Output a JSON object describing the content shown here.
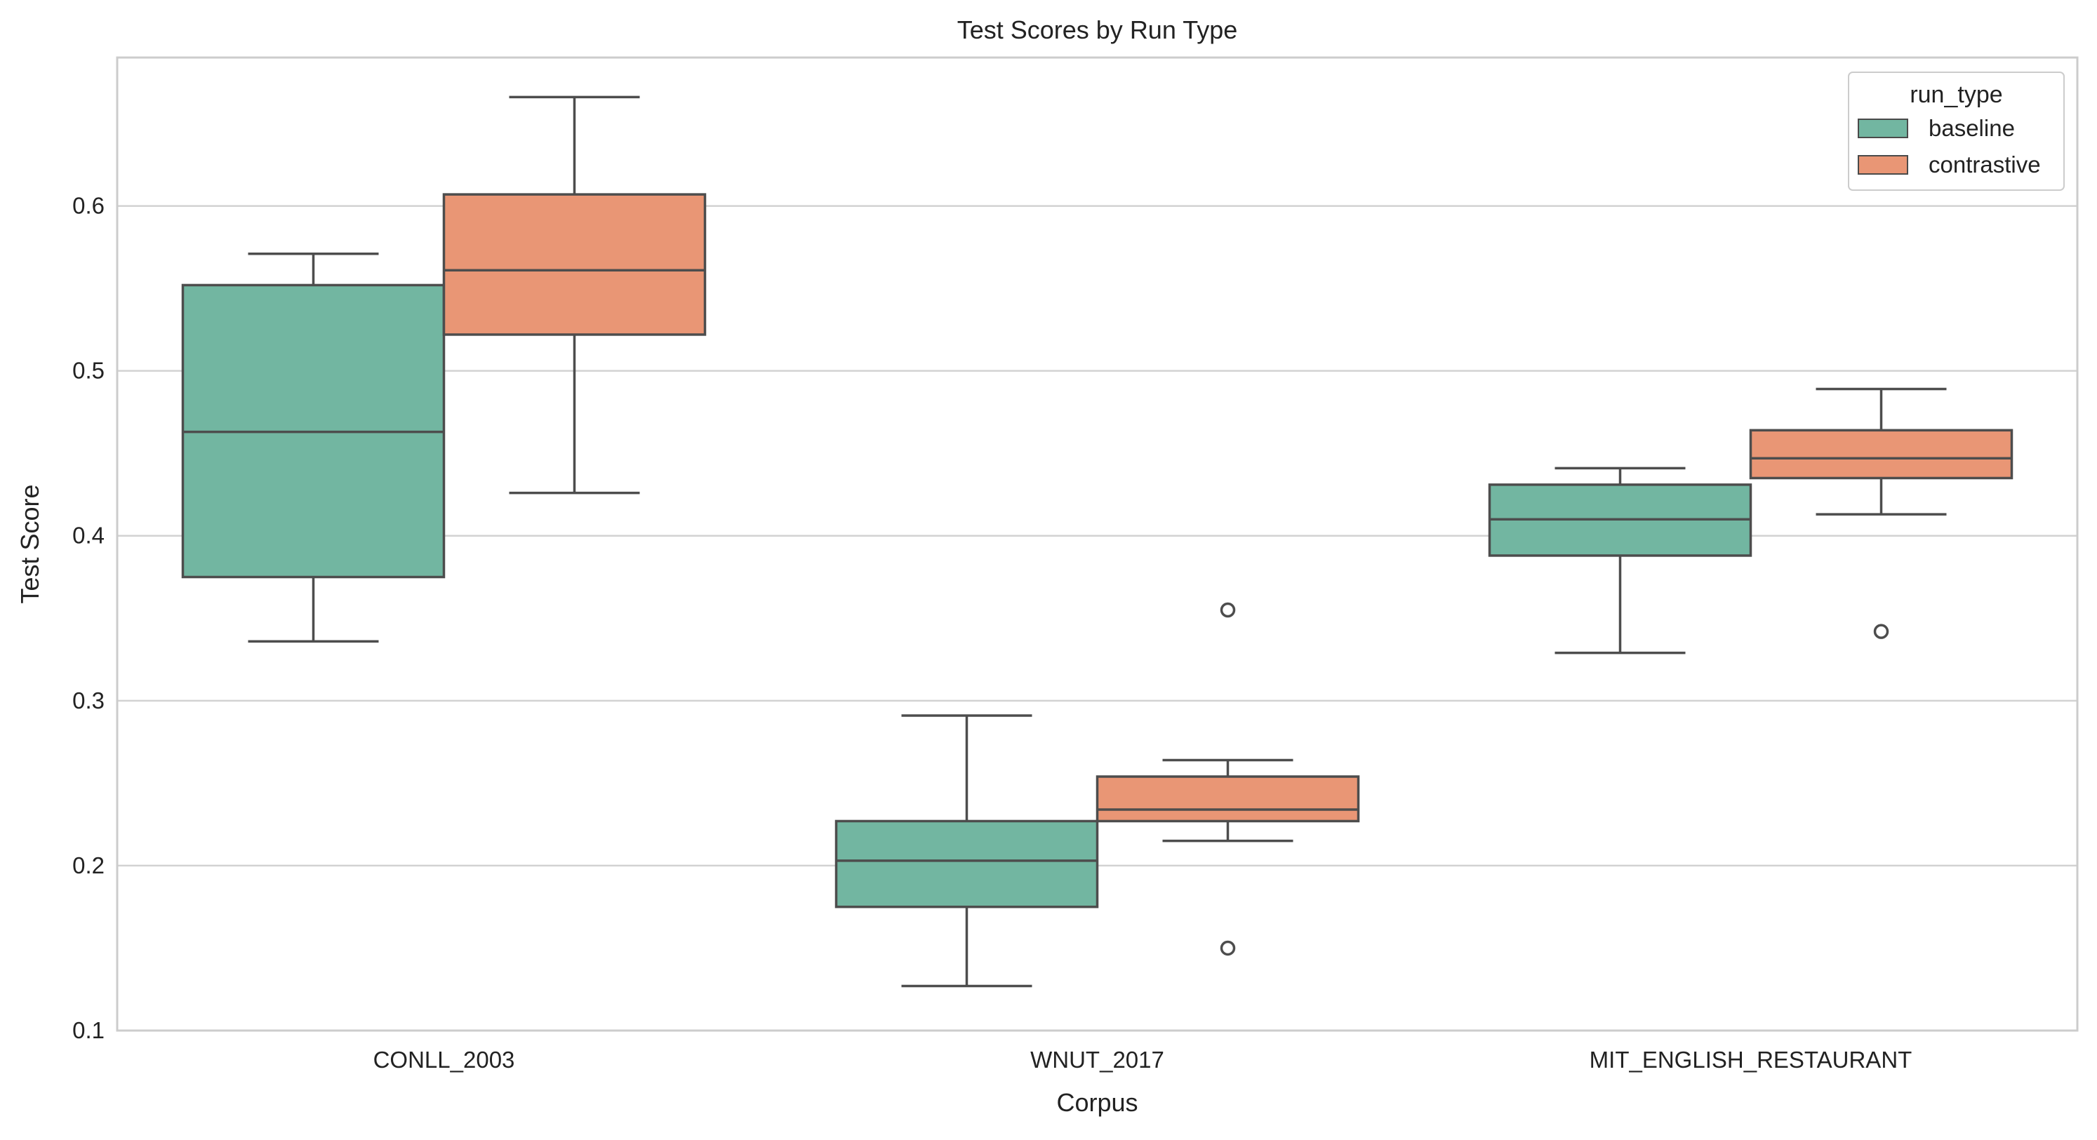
{
  "chart_data": {
    "type": "box",
    "title": "Test Scores by Run Type",
    "xlabel": "Corpus",
    "ylabel": "Test Score",
    "ylim": [
      0.1,
      0.69
    ],
    "yticks": [
      "0.1",
      "0.2",
      "0.3",
      "0.4",
      "0.5",
      "0.6"
    ],
    "grid": "horizontal",
    "legend": {
      "title": "run_type",
      "placement": "top-right"
    },
    "categories": [
      "CONLL_2003",
      "WNUT_2017",
      "MIT_ENGLISH_RESTAURANT"
    ],
    "series": [
      {
        "name": "baseline",
        "color": "#72b6a1",
        "boxes": [
          {
            "whislo": 0.336,
            "q1": 0.375,
            "median": 0.463,
            "q3": 0.552,
            "whishi": 0.571,
            "fliers": []
          },
          {
            "whislo": 0.127,
            "q1": 0.175,
            "median": 0.203,
            "q3": 0.227,
            "whishi": 0.291,
            "fliers": []
          },
          {
            "whislo": 0.329,
            "q1": 0.388,
            "median": 0.41,
            "q3": 0.431,
            "whishi": 0.441,
            "fliers": []
          }
        ]
      },
      {
        "name": "contrastive",
        "color": "#e99675",
        "boxes": [
          {
            "whislo": 0.426,
            "q1": 0.522,
            "median": 0.561,
            "q3": 0.607,
            "whishi": 0.666,
            "fliers": []
          },
          {
            "whislo": 0.215,
            "q1": 0.227,
            "median": 0.234,
            "q3": 0.254,
            "whishi": 0.264,
            "fliers": [
              0.355,
              0.15
            ]
          },
          {
            "whislo": 0.413,
            "q1": 0.435,
            "median": 0.447,
            "q3": 0.464,
            "whishi": 0.489,
            "fliers": [
              0.342
            ]
          }
        ]
      }
    ]
  }
}
